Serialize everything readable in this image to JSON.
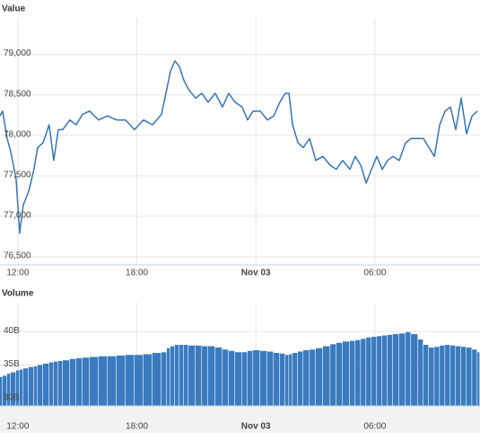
{
  "chart_data": [
    {
      "type": "line",
      "ylabel": "Value",
      "color": "#3674b5",
      "grid": true,
      "xlim": [
        -0.9,
        23.3
      ],
      "ylim": [
        76400,
        79450
      ],
      "xticks": [
        {
          "value": 0,
          "label": "12:00"
        },
        {
          "value": 6,
          "label": "18:00"
        },
        {
          "value": 12,
          "label": "Nov 03"
        },
        {
          "value": 18,
          "label": "06:00"
        }
      ],
      "yticks": [
        {
          "value": 76500,
          "label": "76,500"
        },
        {
          "value": 77000,
          "label": "77,000"
        },
        {
          "value": 77500,
          "label": "77,500"
        },
        {
          "value": 78000,
          "label": "78,000"
        },
        {
          "value": 78500,
          "label": "78,500"
        },
        {
          "value": 79000,
          "label": "79,000"
        }
      ],
      "x": [
        -0.9,
        -0.77,
        -0.54,
        -0.36,
        -0.09,
        0.09,
        0.27,
        0.54,
        0.81,
        1.0,
        1.27,
        1.58,
        1.81,
        2.04,
        2.26,
        2.62,
        2.94,
        3.26,
        3.62,
        4.07,
        4.52,
        4.98,
        5.43,
        5.88,
        6.33,
        6.79,
        7.24,
        7.51,
        7.69,
        7.92,
        8.14,
        8.37,
        8.6,
        8.96,
        9.28,
        9.59,
        9.95,
        10.32,
        10.63,
        10.95,
        11.31,
        11.58,
        11.86,
        12.22,
        12.58,
        12.9,
        13.21,
        13.48,
        13.67,
        13.85,
        14.12,
        14.39,
        14.71,
        15.02,
        15.38,
        15.75,
        16.06,
        16.38,
        16.74,
        17.01,
        17.29,
        17.56,
        17.83,
        18.1,
        18.37,
        18.64,
        18.91,
        19.23,
        19.55,
        19.82,
        20.18,
        20.45,
        20.72,
        21.0,
        21.27,
        21.54,
        21.81,
        22.08,
        22.35,
        22.62,
        22.9,
        23.17
      ],
      "values": [
        78240,
        78300,
        77960,
        77800,
        77470,
        76790,
        77140,
        77300,
        77580,
        77850,
        77910,
        78130,
        77690,
        78070,
        78070,
        78190,
        78130,
        78260,
        78300,
        78190,
        78240,
        78190,
        78190,
        78070,
        78190,
        78130,
        78260,
        78570,
        78790,
        78920,
        78850,
        78680,
        78570,
        78460,
        78520,
        78410,
        78520,
        78350,
        78520,
        78410,
        78350,
        78190,
        78300,
        78300,
        78190,
        78240,
        78410,
        78520,
        78520,
        78130,
        77910,
        77850,
        77960,
        77690,
        77740,
        77630,
        77580,
        77690,
        77580,
        77740,
        77630,
        77410,
        77580,
        77740,
        77580,
        77690,
        77740,
        77690,
        77910,
        77960,
        77960,
        77960,
        77850,
        77740,
        78130,
        78300,
        78350,
        78070,
        78460,
        78020,
        78240,
        78300
      ]
    },
    {
      "type": "bar",
      "ylabel": "Volume",
      "color": "#3a7bbf",
      "grid": true,
      "xlim": [
        -0.9,
        23.3
      ],
      "ylim": [
        28.9,
        44.3
      ],
      "xticks": [
        {
          "value": 0,
          "label": "12:00"
        },
        {
          "value": 6,
          "label": "18:00"
        },
        {
          "value": 12,
          "label": "Nov 03"
        },
        {
          "value": 18,
          "label": "06:00"
        }
      ],
      "yticks": [
        {
          "value": 30,
          "label": "30B"
        },
        {
          "value": 35,
          "label": "35B"
        },
        {
          "value": 40,
          "label": "40B"
        }
      ],
      "x": [
        -0.9,
        -0.77,
        -0.54,
        -0.36,
        -0.09,
        0.09,
        0.27,
        0.54,
        0.81,
        1.0,
        1.27,
        1.58,
        1.81,
        2.04,
        2.26,
        2.62,
        2.94,
        3.26,
        3.62,
        4.07,
        4.52,
        4.98,
        5.43,
        5.88,
        6.33,
        6.79,
        7.24,
        7.51,
        7.69,
        7.92,
        8.14,
        8.37,
        8.6,
        8.96,
        9.28,
        9.59,
        9.95,
        10.32,
        10.63,
        10.95,
        11.31,
        11.58,
        11.86,
        12.22,
        12.58,
        12.9,
        13.21,
        13.48,
        13.67,
        13.85,
        14.12,
        14.39,
        14.71,
        15.02,
        15.38,
        15.75,
        16.06,
        16.38,
        16.74,
        17.01,
        17.29,
        17.56,
        17.83,
        18.1,
        18.37,
        18.64,
        18.91,
        19.23,
        19.55,
        19.82,
        20.18,
        20.45,
        20.72,
        21.0,
        21.27,
        21.54,
        21.81,
        22.08,
        22.35,
        22.62,
        22.9,
        23.17
      ],
      "values": [
        33.2,
        33.4,
        33.7,
        33.9,
        34.2,
        34.3,
        34.5,
        34.7,
        34.8,
        35.0,
        35.2,
        35.4,
        35.5,
        35.6,
        35.7,
        35.9,
        36.0,
        36.1,
        36.2,
        36.3,
        36.3,
        36.4,
        36.5,
        36.5,
        36.6,
        36.8,
        36.9,
        37.5,
        37.8,
        38.0,
        38.0,
        38.0,
        37.9,
        37.9,
        37.8,
        37.8,
        37.6,
        37.3,
        37.1,
        36.9,
        36.9,
        37.1,
        37.2,
        37.1,
        37.0,
        36.8,
        36.7,
        36.5,
        36.6,
        36.8,
        37.0,
        37.2,
        37.3,
        37.5,
        37.8,
        38.1,
        38.3,
        38.5,
        38.6,
        38.7,
        38.9,
        39.1,
        39.2,
        39.3,
        39.4,
        39.5,
        39.6,
        39.7,
        39.9,
        39.6,
        38.8,
        38.0,
        37.6,
        37.7,
        37.9,
        38.0,
        37.9,
        37.8,
        37.7,
        37.6,
        37.3,
        36.9
      ]
    }
  ]
}
